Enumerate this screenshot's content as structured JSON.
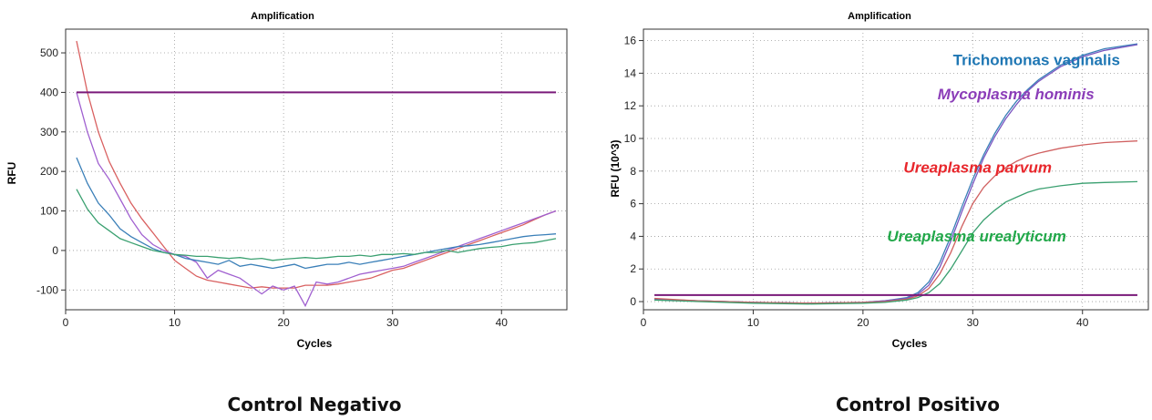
{
  "chart_data": [
    {
      "type": "line",
      "title": "Amplification",
      "xlabel": "Cycles",
      "ylabel": "RFU",
      "xlim": [
        0,
        46
      ],
      "ylim": [
        -150,
        560
      ],
      "xticks": [
        0,
        10,
        20,
        30,
        40
      ],
      "yticks": [
        -100,
        0,
        100,
        200,
        300,
        400,
        500
      ],
      "grid": true,
      "caption": "Control Negativo",
      "threshold": 400,
      "threshold_range": [
        1,
        45
      ],
      "series": [
        {
          "color": "#d96060",
          "x": [
            1,
            2,
            3,
            4,
            5,
            6,
            7,
            8,
            9,
            10,
            11,
            12,
            13,
            14,
            15,
            16,
            17,
            18,
            19,
            20,
            21,
            22,
            23,
            24,
            25,
            26,
            27,
            28,
            29,
            30,
            31,
            32,
            33,
            34,
            35,
            36,
            37,
            38,
            39,
            40,
            41,
            42,
            43,
            44,
            45
          ],
          "y": [
            530,
            400,
            300,
            225,
            170,
            120,
            80,
            45,
            10,
            -25,
            -45,
            -65,
            -75,
            -80,
            -85,
            -90,
            -95,
            -92,
            -95,
            -95,
            -95,
            -88,
            -88,
            -88,
            -85,
            -80,
            -75,
            -70,
            -60,
            -50,
            -45,
            -35,
            -25,
            -15,
            -5,
            5,
            15,
            25,
            35,
            45,
            55,
            65,
            78,
            90,
            100
          ]
        },
        {
          "color": "#a060d0",
          "x": [
            1,
            2,
            3,
            4,
            5,
            6,
            7,
            8,
            9,
            10,
            11,
            12,
            13,
            14,
            15,
            16,
            17,
            18,
            19,
            20,
            21,
            22,
            23,
            24,
            25,
            26,
            27,
            28,
            29,
            30,
            31,
            32,
            33,
            34,
            35,
            36,
            37,
            38,
            39,
            40,
            41,
            42,
            43,
            44,
            45
          ],
          "y": [
            400,
            300,
            220,
            180,
            130,
            80,
            40,
            15,
            0,
            -10,
            -15,
            -30,
            -70,
            -50,
            -60,
            -70,
            -90,
            -110,
            -90,
            -100,
            -90,
            -140,
            -80,
            -85,
            -80,
            -70,
            -60,
            -55,
            -50,
            -45,
            -40,
            -30,
            -20,
            -10,
            0,
            10,
            20,
            30,
            40,
            50,
            60,
            70,
            80,
            90,
            100
          ]
        },
        {
          "color": "#3a7fb8",
          "x": [
            1,
            2,
            3,
            4,
            5,
            6,
            7,
            8,
            9,
            10,
            11,
            12,
            13,
            14,
            15,
            16,
            17,
            18,
            19,
            20,
            21,
            22,
            23,
            24,
            25,
            26,
            27,
            28,
            29,
            30,
            31,
            32,
            33,
            34,
            35,
            36,
            37,
            38,
            39,
            40,
            41,
            42,
            43,
            44,
            45
          ],
          "y": [
            235,
            170,
            120,
            90,
            55,
            35,
            20,
            5,
            -5,
            -10,
            -20,
            -25,
            -30,
            -35,
            -25,
            -40,
            -35,
            -40,
            -45,
            -40,
            -35,
            -45,
            -40,
            -35,
            -35,
            -30,
            -35,
            -30,
            -25,
            -20,
            -15,
            -10,
            -5,
            0,
            5,
            10,
            12,
            15,
            20,
            25,
            30,
            35,
            38,
            40,
            42
          ]
        },
        {
          "color": "#3aa070",
          "x": [
            1,
            2,
            3,
            4,
            5,
            6,
            7,
            8,
            9,
            10,
            11,
            12,
            13,
            14,
            15,
            16,
            17,
            18,
            19,
            20,
            21,
            22,
            23,
            24,
            25,
            26,
            27,
            28,
            29,
            30,
            31,
            32,
            33,
            34,
            35,
            36,
            37,
            38,
            39,
            40,
            41,
            42,
            43,
            44,
            45
          ],
          "y": [
            155,
            105,
            70,
            50,
            30,
            20,
            10,
            0,
            -5,
            -10,
            -12,
            -15,
            -15,
            -18,
            -20,
            -18,
            -22,
            -20,
            -25,
            -22,
            -20,
            -18,
            -20,
            -18,
            -15,
            -15,
            -12,
            -15,
            -10,
            -10,
            -8,
            -10,
            -5,
            -5,
            0,
            -5,
            0,
            5,
            8,
            10,
            15,
            18,
            20,
            25,
            30
          ]
        }
      ]
    },
    {
      "type": "line",
      "title": "Amplification",
      "xlabel": "Cycles",
      "ylabel": "RFU (10^3)",
      "xlim": [
        0,
        46
      ],
      "ylim": [
        -0.5,
        16.7
      ],
      "xticks": [
        0,
        10,
        20,
        30,
        40
      ],
      "yticks": [
        0,
        2,
        4,
        6,
        8,
        10,
        12,
        14,
        16
      ],
      "grid": true,
      "caption": "Control Positivo",
      "threshold": 0.4,
      "threshold_range": [
        1,
        45
      ],
      "annotations": [
        {
          "text": "Trichomonas vaginalis",
          "color": "#1f77b4",
          "italic": false,
          "x": 28.2,
          "y": 14.5
        },
        {
          "text": "Mycoplasma hominis",
          "color": "#8b3db8",
          "italic": true,
          "x": 26.8,
          "y": 12.4
        },
        {
          "text": "Ureaplasma parvum",
          "color": "#e8262b",
          "italic": true,
          "x": 23.7,
          "y": 7.9
        },
        {
          "text": "Ureaplasma urealyticum",
          "color": "#22a84a",
          "italic": true,
          "x": 22.2,
          "y": 3.7
        }
      ],
      "series": [
        {
          "name": "Trichomonas vaginalis",
          "color": "#3a7fb8",
          "x": [
            1,
            5,
            10,
            15,
            20,
            22,
            24,
            25,
            26,
            27,
            28,
            29,
            30,
            31,
            32,
            33,
            34,
            35,
            36,
            38,
            40,
            42,
            45
          ],
          "y": [
            0.15,
            0.05,
            -0.05,
            -0.1,
            -0.05,
            0.05,
            0.25,
            0.55,
            1.2,
            2.4,
            4.0,
            5.8,
            7.5,
            9.0,
            10.3,
            11.4,
            12.3,
            13.0,
            13.6,
            14.5,
            15.1,
            15.5,
            15.8
          ]
        },
        {
          "name": "Mycoplasma hominis",
          "color": "#7a55c0",
          "x": [
            1,
            5,
            10,
            15,
            20,
            22,
            24,
            25,
            26,
            27,
            28,
            29,
            30,
            31,
            32,
            33,
            34,
            35,
            36,
            38,
            40,
            42,
            45
          ],
          "y": [
            0.15,
            0.05,
            -0.05,
            -0.1,
            -0.05,
            0.05,
            0.2,
            0.45,
            1.0,
            2.1,
            3.7,
            5.5,
            7.2,
            8.8,
            10.1,
            11.2,
            12.1,
            12.9,
            13.5,
            14.4,
            15.0,
            15.4,
            15.75
          ]
        },
        {
          "name": "Ureaplasma parvum",
          "color": "#d06060",
          "x": [
            1,
            5,
            10,
            15,
            20,
            22,
            24,
            25,
            26,
            27,
            28,
            29,
            30,
            31,
            32,
            33,
            34,
            35,
            36,
            38,
            40,
            42,
            45
          ],
          "y": [
            0.2,
            0.05,
            -0.05,
            -0.1,
            -0.05,
            0.0,
            0.15,
            0.35,
            0.8,
            1.7,
            3.0,
            4.6,
            6.0,
            7.0,
            7.7,
            8.2,
            8.6,
            8.9,
            9.1,
            9.4,
            9.6,
            9.75,
            9.85
          ]
        },
        {
          "name": "Ureaplasma urealyticum",
          "color": "#3aa070",
          "x": [
            1,
            5,
            10,
            15,
            20,
            22,
            24,
            25,
            26,
            27,
            28,
            29,
            30,
            31,
            32,
            33,
            34,
            35,
            36,
            38,
            40,
            42,
            45
          ],
          "y": [
            0.1,
            0.0,
            -0.1,
            -0.15,
            -0.1,
            -0.05,
            0.1,
            0.25,
            0.55,
            1.1,
            2.0,
            3.1,
            4.2,
            5.0,
            5.6,
            6.1,
            6.4,
            6.7,
            6.9,
            7.1,
            7.25,
            7.3,
            7.35
          ]
        }
      ]
    }
  ]
}
